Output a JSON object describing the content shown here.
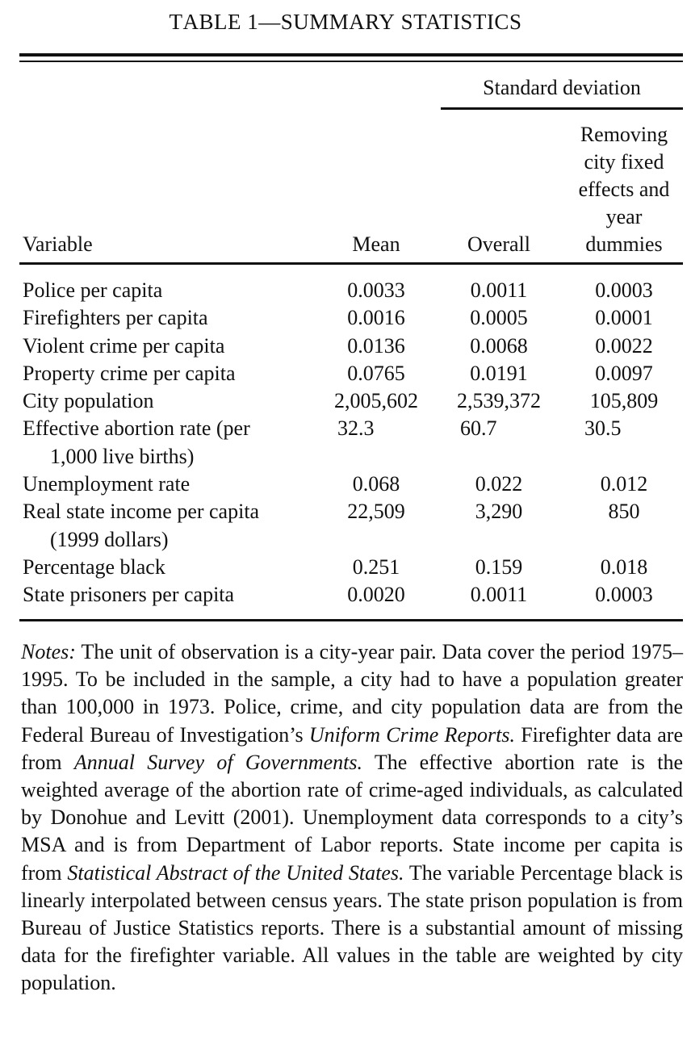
{
  "title": {
    "t1": "T",
    "t2": "ABLE",
    "t3": " 1—S",
    "t4": "UMMARY",
    "t5": " S",
    "t6": "TATISTICS"
  },
  "header": {
    "sd_group": "Standard deviation",
    "variable": "Variable",
    "mean": "Mean",
    "overall": "Overall",
    "removing": "Removing city fixed effects and year dummies"
  },
  "rows": [
    {
      "label": "Police per capita",
      "label2": "",
      "mean": "0.0033",
      "overall": "0.0011",
      "remove": "0.0003"
    },
    {
      "label": "Firefighters per capita",
      "label2": "",
      "mean": "0.0016",
      "overall": "0.0005",
      "remove": "0.0001"
    },
    {
      "label": "Violent crime per capita",
      "label2": "",
      "mean": "0.0136",
      "overall": "0.0068",
      "remove": "0.0022"
    },
    {
      "label": "Property crime per capita",
      "label2": "",
      "mean": "0.0765",
      "overall": "0.0191",
      "remove": "0.0097"
    },
    {
      "label": "City population",
      "label2": "",
      "mean": "2,005,602",
      "overall": "2,539,372",
      "remove": "105,809"
    },
    {
      "label": "Effective abortion rate (per",
      "label2": "1,000 live births)",
      "mean": "32.3",
      "overall": "60.7",
      "remove": "30.5"
    },
    {
      "label": "Unemployment rate",
      "label2": "",
      "mean": "0.068",
      "overall": "0.022",
      "remove": "0.012"
    },
    {
      "label": "Real state income per capita",
      "label2": "(1999 dollars)",
      "mean": "22,509",
      "overall": "3,290",
      "remove": "850"
    },
    {
      "label": "Percentage black",
      "label2": "",
      "mean": "0.251",
      "overall": "0.159",
      "remove": "0.018"
    },
    {
      "label": "State prisoners per capita",
      "label2": "",
      "mean": "0.0020",
      "overall": "0.0011",
      "remove": "0.0003"
    }
  ],
  "notes": {
    "lead": "Notes:",
    "p1": " The unit of observation is a city-year pair. Data cover the period 1975–1995. To be included in the sample, a city had to have a population greater than 100,000 in 1973. Police, crime, and city population data are from the Federal Bureau of Investigation’s ",
    "i1": "Uniform Crime Reports.",
    "p2": " Firefighter data are from ",
    "i2": "Annual Survey of Governments.",
    "p3": " The effective abortion rate is the weighted average of the abortion rate of crime-aged individuals, as calculated by Donohue and Levitt (2001). Unemployment data corresponds to a city’s MSA and is from Department of Labor reports. State income per capita is from ",
    "i3": "Statistical Abstract of the United States.",
    "p4": " The variable Percentage black is linearly interpolated between census years. The state prison population is from Bureau of Justice Statistics reports. There is a substantial amount of missing data for the firefighter variable. All values in the table are weighted by city population."
  }
}
